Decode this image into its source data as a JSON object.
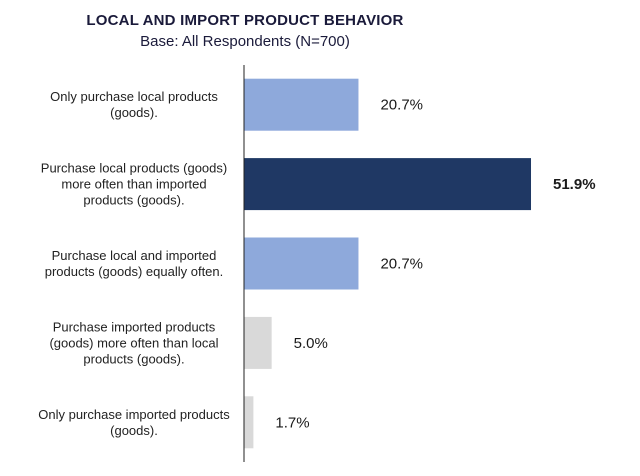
{
  "chart_data": {
    "type": "bar",
    "orientation": "horizontal",
    "title": "LOCAL AND IMPORT PRODUCT BEHAVIOR",
    "subtitle": "Base: All Respondents (N=700)",
    "categories": [
      [
        "Only purchase local products",
        "(goods)."
      ],
      [
        "Purchase local products (goods)",
        "more often than imported",
        "products (goods)."
      ],
      [
        "Purchase local and imported",
        "products (goods) equally often."
      ],
      [
        "Purchase imported products",
        "(goods) more often than local",
        "products (goods)."
      ],
      [
        "Only purchase imported products",
        "(goods)."
      ]
    ],
    "values": [
      20.7,
      51.9,
      20.7,
      5.0,
      1.7
    ],
    "value_labels": [
      "20.7%",
      "51.9%",
      "20.7%",
      "5.0%",
      "1.7%"
    ],
    "highlight_index": 1,
    "xlim": [
      0,
      55
    ],
    "grid": false,
    "legend": "none",
    "colors": {
      "primary": "#8ea9db",
      "highlight": "#1f3864",
      "minor": "#d9d9d9",
      "bar_colors": [
        "#8ea9db",
        "#1f3864",
        "#8ea9db",
        "#d9d9d9",
        "#d9d9d9"
      ]
    }
  }
}
